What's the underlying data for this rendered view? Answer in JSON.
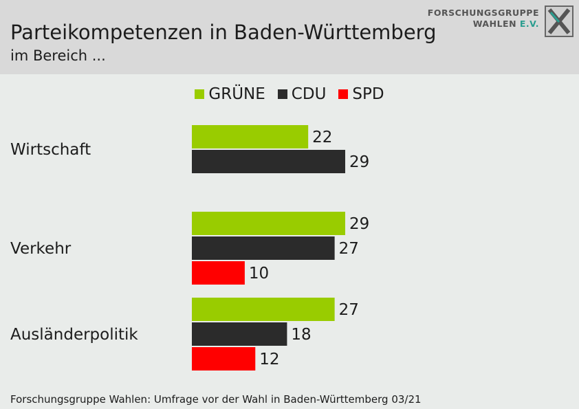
{
  "header": {
    "title": "Parteikompetenzen in Baden-Württemberg",
    "subtitle": "im Bereich ..."
  },
  "logo": {
    "line1": "FORSCHUNGSGRUPPE",
    "line2_main": "WAHLEN ",
    "line2_accent": "E.V."
  },
  "colors": {
    "header_bg": "#d9d9d9",
    "body_bg": "#e9ecea",
    "gruene": "#99cc00",
    "cdu": "#2b2b2b",
    "spd": "#ff0000"
  },
  "chart_data": {
    "type": "bar",
    "orientation": "horizontal",
    "categories": [
      "Wirtschaft",
      "Verkehr",
      "Ausländerpolitik"
    ],
    "series": [
      {
        "name": "GRÜNE",
        "color": "#99cc00",
        "values": [
          22,
          29,
          27
        ]
      },
      {
        "name": "CDU",
        "color": "#2b2b2b",
        "values": [
          29,
          27,
          18
        ]
      },
      {
        "name": "SPD",
        "color": "#ff0000",
        "values": [
          null,
          10,
          12
        ]
      }
    ],
    "legend_position": "top-center",
    "data_labels": true
  },
  "footer": {
    "source": "Forschungsgruppe Wahlen: Umfrage vor der Wahl in Baden-Württemberg 03/21"
  }
}
